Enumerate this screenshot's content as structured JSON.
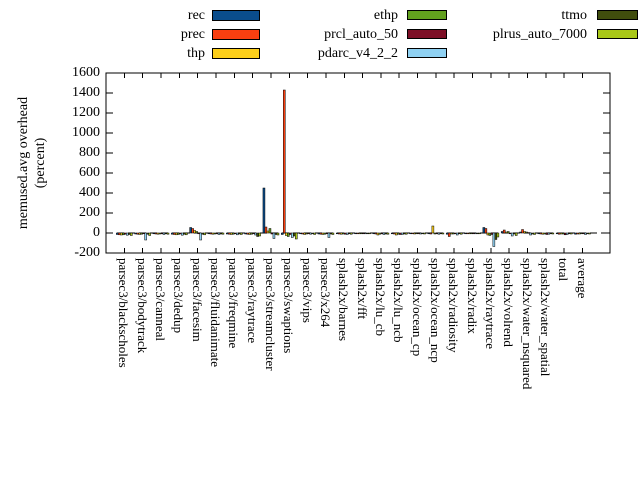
{
  "chart_data": {
    "type": "bar",
    "title": "",
    "xlabel": "",
    "ylabel_line1": "memused.avg overhead",
    "ylabel_line2": "(percent)",
    "ylim": [
      -200,
      1600
    ],
    "ytick_step": 200,
    "grid": false,
    "zero_line": "dashed",
    "legend_position": "top-outside",
    "frame_color": "#000000",
    "categories": [
      "parsec3/blackscholes",
      "parsec3/bodytrack",
      "parsec3/canneal",
      "parsec3/dedup",
      "parsec3/facesim",
      "parsec3/fluidanimate",
      "parsec3/freqmine",
      "parsec3/raytrace",
      "parsec3/streamcluster",
      "parsec3/swaptions",
      "parsec3/vips",
      "parsec3/x264",
      "splash2x/barnes",
      "splash2x/fft",
      "splash2x/lu_cb",
      "splash2x/lu_ncb",
      "splash2x/ocean_cp",
      "splash2x/ocean_ncp",
      "splash2x/radiosity",
      "splash2x/radix",
      "splash2x/raytrace",
      "splash2x/volrend",
      "splash2x/water_nsquared",
      "splash2x/water_spatial",
      "total",
      "average"
    ],
    "series": [
      {
        "name": "rec",
        "color": "#0a4d8c",
        "values": [
          -15,
          -10,
          -8,
          -12,
          55,
          -8,
          -10,
          -10,
          450,
          -15,
          -8,
          -10,
          -8,
          -5,
          -8,
          -8,
          -5,
          -8,
          -12,
          -5,
          55,
          15,
          10,
          -8,
          -8,
          -12
        ]
      },
      {
        "name": "prec",
        "color": "#f93f10",
        "values": [
          -18,
          -12,
          -10,
          -15,
          45,
          -10,
          -12,
          -12,
          60,
          1430,
          -10,
          -12,
          -10,
          -6,
          -10,
          -10,
          -8,
          -10,
          -35,
          -6,
          45,
          30,
          35,
          -10,
          -12,
          -10
        ]
      },
      {
        "name": "thp",
        "color": "#fccf1b",
        "values": [
          -20,
          -15,
          -12,
          -18,
          25,
          -12,
          -15,
          -15,
          20,
          -25,
          -15,
          -15,
          -12,
          -8,
          -20,
          -20,
          -10,
          70,
          -10,
          -8,
          -20,
          10,
          15,
          -12,
          -10,
          -10
        ]
      },
      {
        "name": "ethp",
        "color": "#62a01e",
        "values": [
          -18,
          -12,
          -10,
          -15,
          15,
          -10,
          -12,
          -12,
          45,
          -35,
          -10,
          -12,
          -10,
          -6,
          -12,
          -12,
          -8,
          -10,
          -10,
          -6,
          -25,
          15,
          10,
          -10,
          -10,
          -8
        ]
      },
      {
        "name": "prcl_auto_50",
        "color": "#7d0f26",
        "values": [
          -12,
          -8,
          -6,
          -10,
          -8,
          -8,
          -8,
          -8,
          -10,
          -15,
          -6,
          -8,
          -12,
          -4,
          -8,
          -15,
          -5,
          -8,
          -8,
          -4,
          -15,
          -5,
          5,
          -15,
          -18,
          -8
        ]
      },
      {
        "name": "pdarc_v4_2_2",
        "color": "#8fd1f2",
        "values": [
          -22,
          -70,
          -15,
          -22,
          -70,
          -15,
          -18,
          -20,
          -55,
          -45,
          -12,
          -45,
          -15,
          -8,
          -15,
          -15,
          -10,
          -12,
          -20,
          -8,
          -135,
          -30,
          -20,
          -12,
          -15,
          -15
        ]
      },
      {
        "name": "ttmo",
        "color": "#404d0d",
        "values": [
          -15,
          -12,
          -8,
          -12,
          -12,
          -10,
          -10,
          -35,
          -15,
          -30,
          -8,
          -10,
          -8,
          -5,
          -10,
          -10,
          -6,
          -8,
          -8,
          -5,
          -65,
          -10,
          -10,
          -8,
          -8,
          -8
        ]
      },
      {
        "name": "plrus_auto_7000",
        "color": "#a9c718",
        "values": [
          -25,
          -25,
          -12,
          -18,
          -18,
          -12,
          -15,
          -30,
          -20,
          -60,
          -15,
          -15,
          -12,
          -8,
          -12,
          -12,
          -10,
          -10,
          -12,
          -8,
          -40,
          -25,
          -15,
          -10,
          -10,
          -10
        ]
      }
    ]
  }
}
